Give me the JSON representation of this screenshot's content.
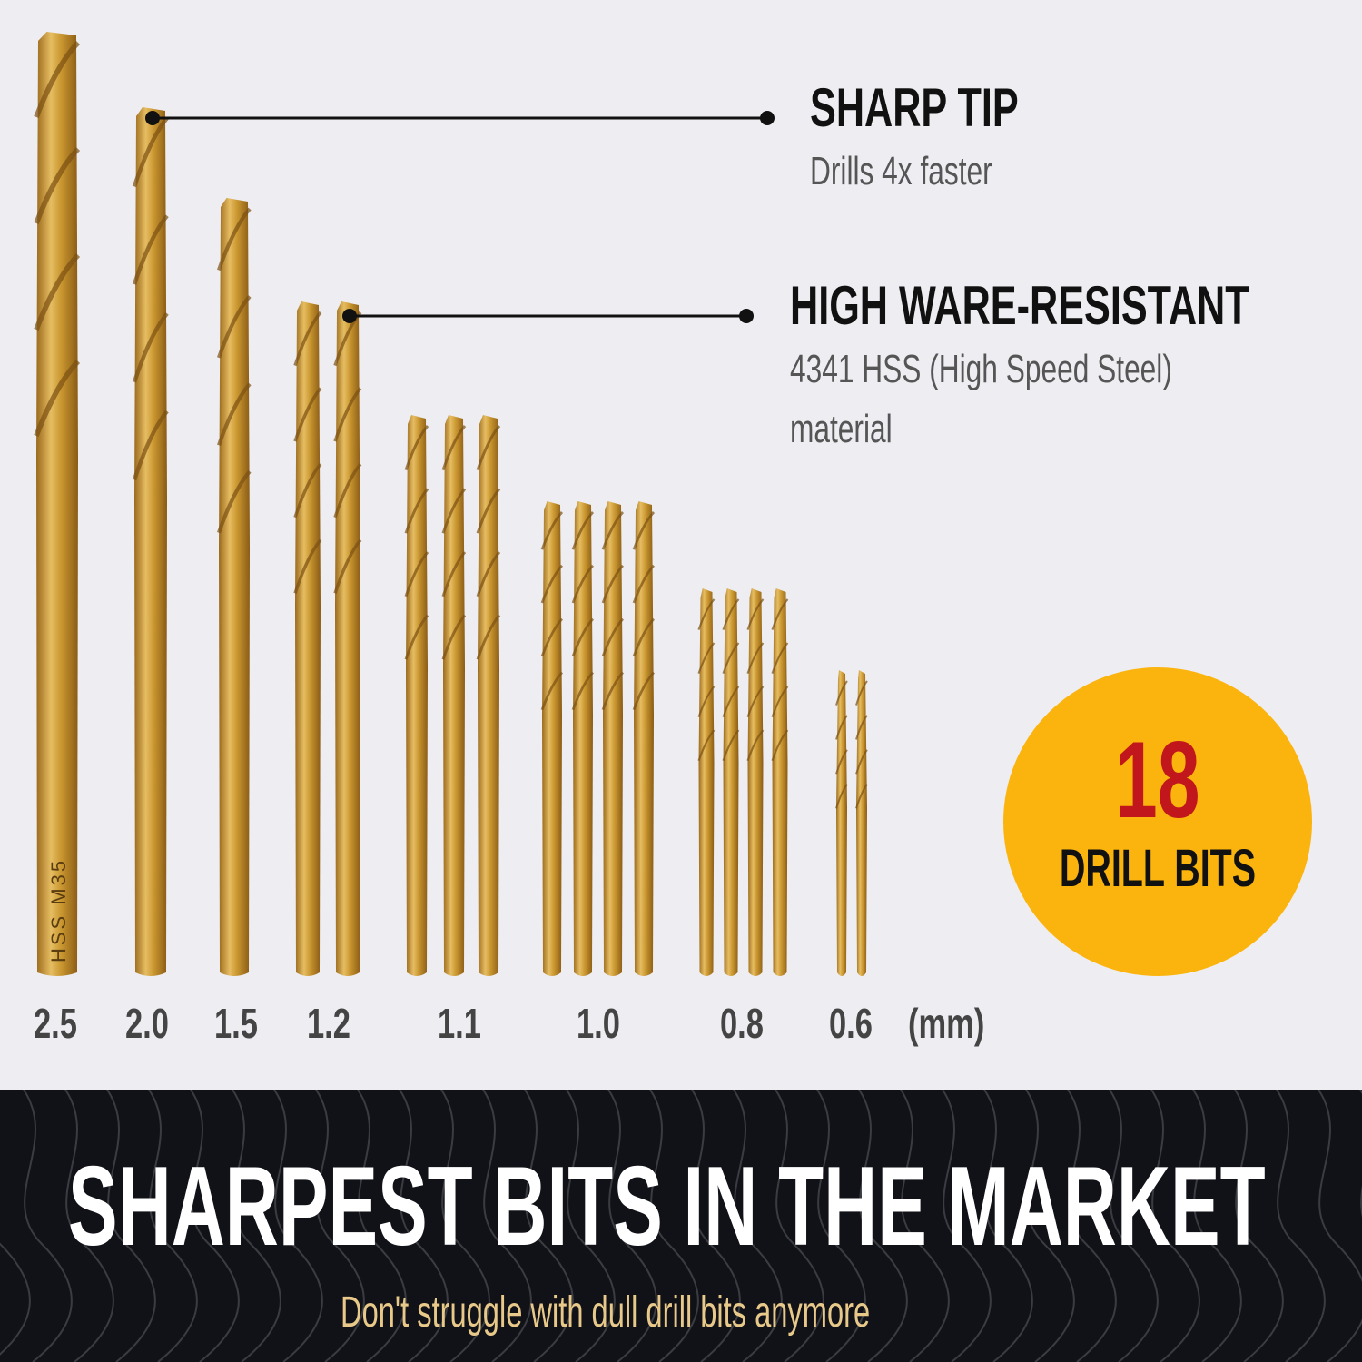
{
  "callouts": [
    {
      "title": "SHARP TIP",
      "subtitle": [
        "Drills 4x faster"
      ]
    },
    {
      "title": "HIGH WARE-RESISTANT",
      "subtitle": [
        "4341 HSS (High Speed Steel)",
        "material"
      ]
    }
  ],
  "drill_sizes": [
    {
      "label": "2.5",
      "count": 1
    },
    {
      "label": "2.0",
      "count": 1
    },
    {
      "label": "1.5",
      "count": 1
    },
    {
      "label": "1.2",
      "count": 2
    },
    {
      "label": "1.1",
      "count": 3
    },
    {
      "label": "1.0",
      "count": 4
    },
    {
      "label": "0.8",
      "count": 4
    },
    {
      "label": "0.6",
      "count": 2
    }
  ],
  "unit_label": "(mm)",
  "shank_marking": "HSS  M35",
  "badge": {
    "number": "18",
    "text": "DRILL BITS",
    "color": "#fbb40d",
    "number_color": "#c0161c"
  },
  "banner": {
    "headline": "SHARPEST BITS IN THE MARKET",
    "subheadline": "Don't struggle with dull drill bits anymore"
  },
  "colors": {
    "background": "#eeedf2",
    "drill_gold": "#c9962f",
    "banner": "#101217"
  }
}
